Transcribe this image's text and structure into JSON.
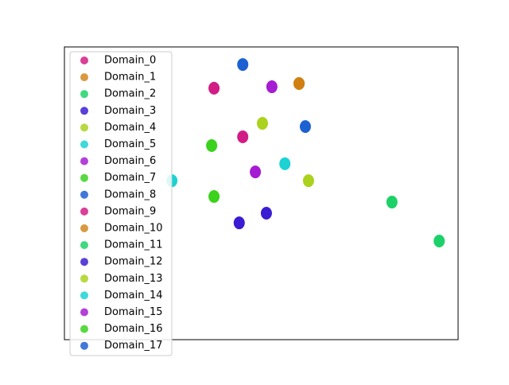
{
  "chart_data": {
    "type": "scatter",
    "xlim": [
      0,
      100
    ],
    "ylim": [
      0,
      100
    ],
    "legend": "upper left",
    "series": [
      {
        "name": "Domain_0",
        "color": "#d0107e",
        "x": [
          38.0
        ],
        "values": [
          85.9
        ]
      },
      {
        "name": "Domain_1",
        "color": "#d07f10",
        "x": [
          59.6
        ],
        "values": [
          87.5
        ]
      },
      {
        "name": "Domain_2",
        "color": "#10d060",
        "x": [
          83.2
        ],
        "values": [
          47.0
        ]
      },
      {
        "name": "Domain_3",
        "color": "#2f10d0",
        "x": [
          44.4
        ],
        "values": [
          39.9
        ]
      },
      {
        "name": "Domain_4",
        "color": "#a6d010",
        "x": [
          50.3
        ],
        "values": [
          73.9
        ]
      },
      {
        "name": "Domain_5",
        "color": "#10d0d0",
        "x": [
          56.0
        ],
        "values": [
          60.1
        ]
      },
      {
        "name": "Domain_6",
        "color": "#a010d0",
        "x": [
          52.7
        ],
        "values": [
          86.4
        ]
      },
      {
        "name": "Domain_7",
        "color": "#30d010",
        "x": [
          37.4
        ],
        "values": [
          66.3
        ]
      },
      {
        "name": "Domain_8",
        "color": "#1058d0",
        "x": [
          45.3
        ],
        "values": [
          94.0
        ]
      },
      {
        "name": "Domain_9",
        "color": "#d0107e",
        "x": [
          45.3
        ],
        "values": [
          69.3
        ]
      },
      {
        "name": "Domain_10",
        "color": "#d07f10",
        "x": [
          59.6
        ],
        "values": [
          87.5
        ]
      },
      {
        "name": "Domain_11",
        "color": "#10d060",
        "x": [
          95.2
        ],
        "values": [
          33.7
        ]
      },
      {
        "name": "Domain_12",
        "color": "#2f10d0",
        "x": [
          51.3
        ],
        "values": [
          43.2
        ]
      },
      {
        "name": "Domain_13",
        "color": "#a6d010",
        "x": [
          62.0
        ],
        "values": [
          54.3
        ]
      },
      {
        "name": "Domain_14",
        "color": "#10d0d0",
        "x": [
          27.3
        ],
        "values": [
          54.3
        ]
      },
      {
        "name": "Domain_15",
        "color": "#a010d0",
        "x": [
          48.5
        ],
        "values": [
          57.3
        ]
      },
      {
        "name": "Domain_16",
        "color": "#30d010",
        "x": [
          38.0
        ],
        "values": [
          48.9
        ]
      },
      {
        "name": "Domain_17",
        "color": "#1058d0",
        "x": [
          61.2
        ],
        "values": [
          72.8
        ]
      }
    ]
  }
}
